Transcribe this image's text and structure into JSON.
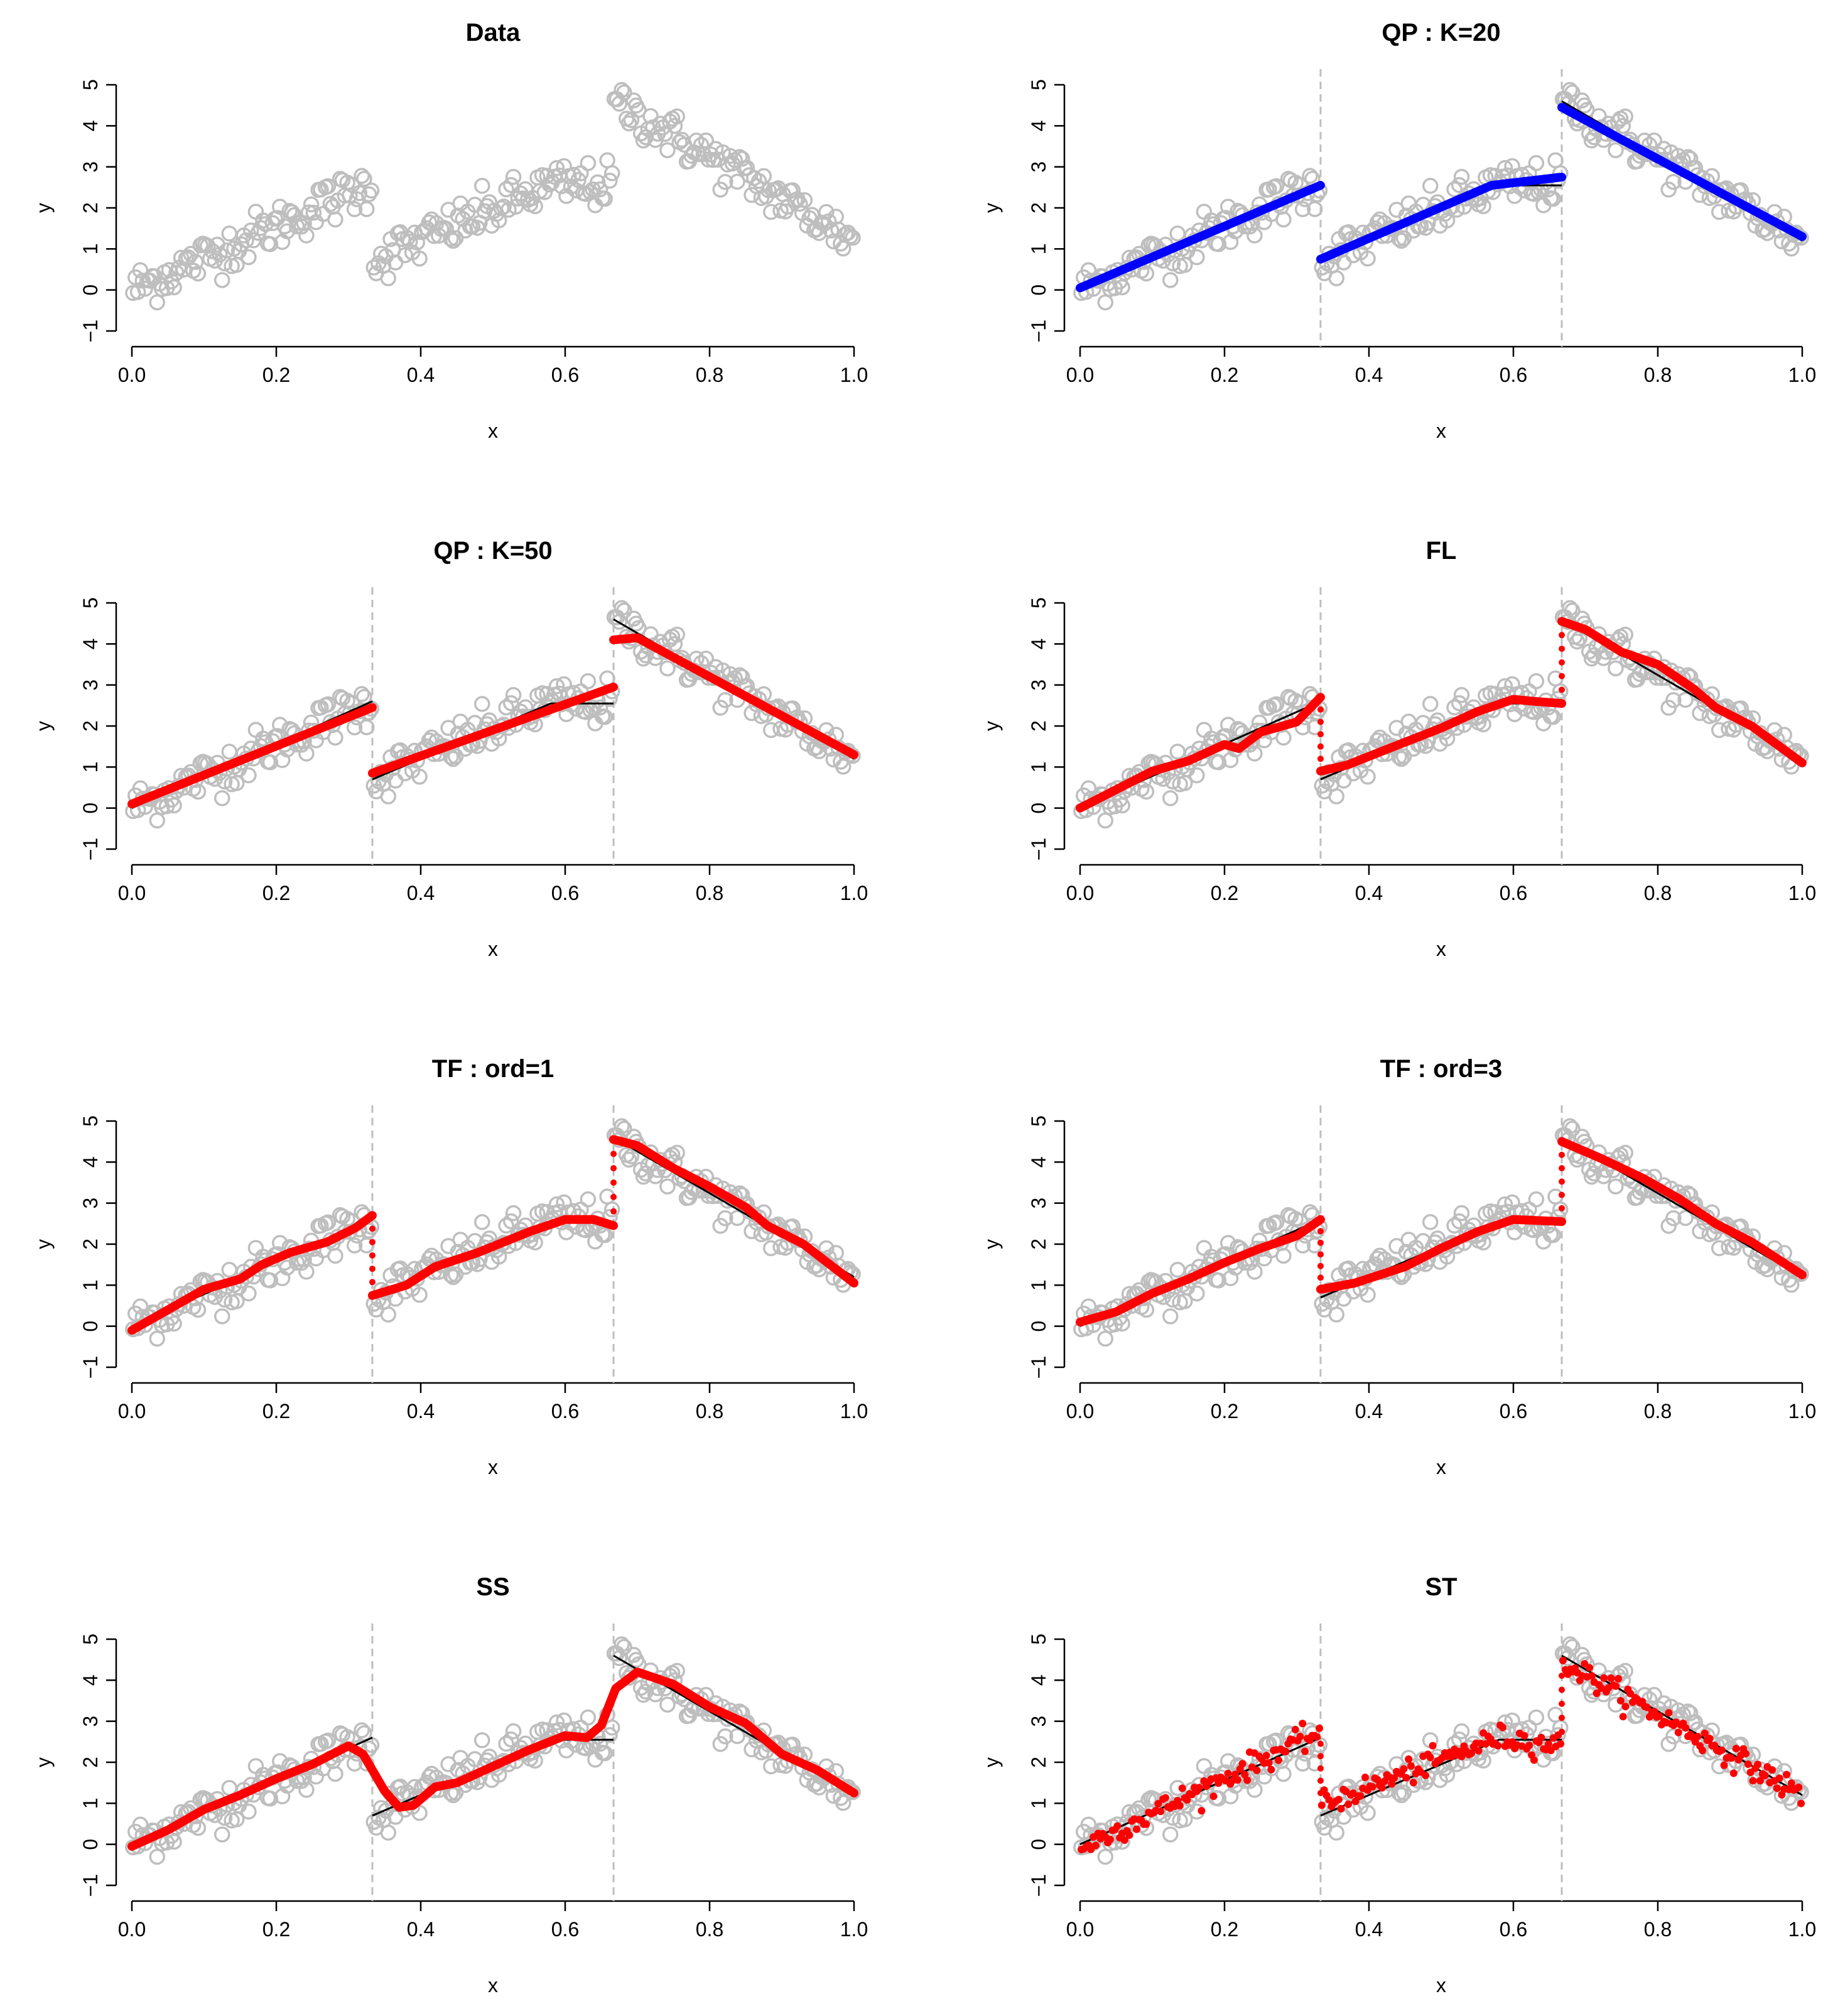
{
  "figure": {
    "colors": {
      "data_points": "#bebebe",
      "truth": "#000000",
      "changepoint_line": "#bebebe",
      "fit_blue": "#0000ff",
      "fit_red": "#ff0000"
    }
  },
  "chart_data": [
    {
      "type": "scatter",
      "title": "Data",
      "xlabel": "x",
      "ylabel": "y",
      "xlim": [
        0,
        1
      ],
      "ylim": [
        -1,
        5
      ],
      "xticks": [
        "0.0",
        "0.2",
        "0.4",
        "0.6",
        "0.8",
        "1.0"
      ],
      "yticks": [
        "−1",
        "0",
        "1",
        "2",
        "3",
        "4",
        "5"
      ],
      "truth": {
        "segments": [
          [
            [
              0,
              0
            ],
            [
              0.333,
              2.6
            ]
          ],
          [
            [
              0.333,
              0.7
            ],
            [
              0.58,
              2.55
            ],
            [
              0.667,
              2.55
            ]
          ],
          [
            [
              0.667,
              4.6
            ],
            [
              1.0,
              1.2
            ]
          ]
        ]
      },
      "changepoints": [],
      "fit": null
    },
    {
      "type": "scatter",
      "title": "QP : K=20",
      "xlabel": "x",
      "ylabel": "y",
      "xlim": [
        0,
        1
      ],
      "ylim": [
        -1,
        5
      ],
      "xticks": [
        "0.0",
        "0.2",
        "0.4",
        "0.6",
        "0.8",
        "1.0"
      ],
      "yticks": [
        "−1",
        "0",
        "1",
        "2",
        "3",
        "4",
        "5"
      ],
      "truth": {
        "segments": [
          [
            [
              0,
              0
            ],
            [
              0.333,
              2.6
            ]
          ],
          [
            [
              0.333,
              0.7
            ],
            [
              0.58,
              2.55
            ],
            [
              0.667,
              2.55
            ]
          ],
          [
            [
              0.667,
              4.6
            ],
            [
              1.0,
              1.2
            ]
          ]
        ]
      },
      "changepoints": [
        0.333,
        0.667
      ],
      "fit": {
        "style": "line",
        "color": "#0000ff",
        "segments": [
          [
            [
              0,
              0.05
            ],
            [
              0.333,
              2.55
            ]
          ],
          [
            [
              0.333,
              0.75
            ],
            [
              0.57,
              2.55
            ],
            [
              0.667,
              2.75
            ]
          ],
          [
            [
              0.667,
              4.45
            ],
            [
              1.0,
              1.3
            ]
          ]
        ]
      }
    },
    {
      "type": "scatter",
      "title": "QP : K=50",
      "xlabel": "x",
      "ylabel": "y",
      "xlim": [
        0,
        1
      ],
      "ylim": [
        -1,
        5
      ],
      "xticks": [
        "0.0",
        "0.2",
        "0.4",
        "0.6",
        "0.8",
        "1.0"
      ],
      "yticks": [
        "−1",
        "0",
        "1",
        "2",
        "3",
        "4",
        "5"
      ],
      "truth": {
        "segments": [
          [
            [
              0,
              0
            ],
            [
              0.333,
              2.6
            ]
          ],
          [
            [
              0.333,
              0.7
            ],
            [
              0.58,
              2.55
            ],
            [
              0.667,
              2.55
            ]
          ],
          [
            [
              0.667,
              4.6
            ],
            [
              1.0,
              1.2
            ]
          ]
        ]
      },
      "changepoints": [
        0.333,
        0.667
      ],
      "fit": {
        "style": "line",
        "color": "#ff0000",
        "segments": [
          [
            [
              0,
              0.1
            ],
            [
              0.333,
              2.45
            ]
          ],
          [
            [
              0.333,
              0.85
            ],
            [
              0.667,
              2.95
            ]
          ],
          [
            [
              0.667,
              4.1
            ],
            [
              0.7,
              4.15
            ],
            [
              1.0,
              1.3
            ]
          ]
        ]
      }
    },
    {
      "type": "scatter",
      "title": "FL",
      "xlabel": "x",
      "ylabel": "y",
      "xlim": [
        0,
        1
      ],
      "ylim": [
        -1,
        5
      ],
      "xticks": [
        "0.0",
        "0.2",
        "0.4",
        "0.6",
        "0.8",
        "1.0"
      ],
      "yticks": [
        "−1",
        "0",
        "1",
        "2",
        "3",
        "4",
        "5"
      ],
      "truth": {
        "segments": [
          [
            [
              0,
              0
            ],
            [
              0.333,
              2.6
            ]
          ],
          [
            [
              0.333,
              0.7
            ],
            [
              0.58,
              2.55
            ],
            [
              0.667,
              2.55
            ]
          ],
          [
            [
              0.667,
              4.6
            ],
            [
              1.0,
              1.2
            ]
          ]
        ]
      },
      "changepoints": [
        0.333,
        0.667
      ],
      "fit": {
        "style": "step",
        "color": "#ff0000",
        "segments": [
          [
            [
              0,
              0.0
            ],
            [
              0.05,
              0.45
            ],
            [
              0.1,
              0.9
            ],
            [
              0.15,
              1.15
            ],
            [
              0.2,
              1.55
            ],
            [
              0.22,
              1.45
            ],
            [
              0.25,
              1.85
            ],
            [
              0.3,
              2.1
            ],
            [
              0.333,
              2.7
            ]
          ],
          [
            [
              0.333,
              0.9
            ],
            [
              0.37,
              1.05
            ],
            [
              0.42,
              1.4
            ],
            [
              0.5,
              1.95
            ],
            [
              0.55,
              2.35
            ],
            [
              0.6,
              2.65
            ],
            [
              0.63,
              2.6
            ],
            [
              0.667,
              2.55
            ]
          ],
          [
            [
              0.667,
              4.55
            ],
            [
              0.7,
              4.35
            ],
            [
              0.75,
              3.8
            ],
            [
              0.8,
              3.5
            ],
            [
              0.85,
              2.9
            ],
            [
              0.88,
              2.45
            ],
            [
              0.93,
              2.0
            ],
            [
              1.0,
              1.1
            ]
          ]
        ]
      }
    },
    {
      "type": "scatter",
      "title": "TF : ord=1",
      "xlabel": "x",
      "ylabel": "y",
      "xlim": [
        0,
        1
      ],
      "ylim": [
        -1,
        5
      ],
      "xticks": [
        "0.0",
        "0.2",
        "0.4",
        "0.6",
        "0.8",
        "1.0"
      ],
      "yticks": [
        "−1",
        "0",
        "1",
        "2",
        "3",
        "4",
        "5"
      ],
      "truth": {
        "segments": [
          [
            [
              0,
              0
            ],
            [
              0.333,
              2.6
            ]
          ],
          [
            [
              0.333,
              0.7
            ],
            [
              0.58,
              2.55
            ],
            [
              0.667,
              2.55
            ]
          ],
          [
            [
              0.667,
              4.6
            ],
            [
              1.0,
              1.2
            ]
          ]
        ]
      },
      "changepoints": [
        0.333,
        0.667
      ],
      "fit": {
        "style": "wiggly",
        "color": "#ff0000",
        "segments": [
          [
            [
              0,
              -0.1
            ],
            [
              0.05,
              0.4
            ],
            [
              0.1,
              0.9
            ],
            [
              0.15,
              1.15
            ],
            [
              0.18,
              1.5
            ],
            [
              0.22,
              1.8
            ],
            [
              0.27,
              2.05
            ],
            [
              0.31,
              2.4
            ],
            [
              0.333,
              2.7
            ]
          ],
          [
            [
              0.333,
              0.75
            ],
            [
              0.38,
              1.0
            ],
            [
              0.42,
              1.45
            ],
            [
              0.48,
              1.8
            ],
            [
              0.55,
              2.3
            ],
            [
              0.6,
              2.6
            ],
            [
              0.64,
              2.6
            ],
            [
              0.667,
              2.45
            ]
          ],
          [
            [
              0.667,
              4.55
            ],
            [
              0.7,
              4.4
            ],
            [
              0.75,
              3.85
            ],
            [
              0.8,
              3.4
            ],
            [
              0.85,
              2.9
            ],
            [
              0.88,
              2.45
            ],
            [
              0.93,
              2.0
            ],
            [
              1.0,
              1.05
            ]
          ]
        ]
      }
    },
    {
      "type": "scatter",
      "title": "TF : ord=3",
      "xlabel": "x",
      "ylabel": "y",
      "xlim": [
        0,
        1
      ],
      "ylim": [
        -1,
        5
      ],
      "xticks": [
        "0.0",
        "0.2",
        "0.4",
        "0.6",
        "0.8",
        "1.0"
      ],
      "yticks": [
        "−1",
        "0",
        "1",
        "2",
        "3",
        "4",
        "5"
      ],
      "truth": {
        "segments": [
          [
            [
              0,
              0
            ],
            [
              0.333,
              2.6
            ]
          ],
          [
            [
              0.333,
              0.7
            ],
            [
              0.58,
              2.55
            ],
            [
              0.667,
              2.55
            ]
          ],
          [
            [
              0.667,
              4.6
            ],
            [
              1.0,
              1.2
            ]
          ]
        ]
      },
      "changepoints": [
        0.333,
        0.667
      ],
      "fit": {
        "style": "step",
        "color": "#ff0000",
        "segments": [
          [
            [
              0,
              0.1
            ],
            [
              0.05,
              0.35
            ],
            [
              0.1,
              0.8
            ],
            [
              0.15,
              1.15
            ],
            [
              0.2,
              1.55
            ],
            [
              0.25,
              1.9
            ],
            [
              0.3,
              2.2
            ],
            [
              0.333,
              2.6
            ]
          ],
          [
            [
              0.333,
              0.9
            ],
            [
              0.38,
              1.05
            ],
            [
              0.45,
              1.45
            ],
            [
              0.5,
              1.9
            ],
            [
              0.55,
              2.3
            ],
            [
              0.6,
              2.6
            ],
            [
              0.667,
              2.55
            ]
          ],
          [
            [
              0.667,
              4.5
            ],
            [
              0.72,
              4.1
            ],
            [
              0.78,
              3.6
            ],
            [
              0.83,
              3.1
            ],
            [
              0.88,
              2.5
            ],
            [
              0.93,
              2.05
            ],
            [
              1.0,
              1.25
            ]
          ]
        ]
      }
    },
    {
      "type": "scatter",
      "title": "SS",
      "xlabel": "x",
      "ylabel": "y",
      "xlim": [
        0,
        1
      ],
      "ylim": [
        -1,
        5
      ],
      "xticks": [
        "0.0",
        "0.2",
        "0.4",
        "0.6",
        "0.8",
        "1.0"
      ],
      "yticks": [
        "−1",
        "0",
        "1",
        "2",
        "3",
        "4",
        "5"
      ],
      "truth": {
        "segments": [
          [
            [
              0,
              0
            ],
            [
              0.333,
              2.6
            ]
          ],
          [
            [
              0.333,
              0.7
            ],
            [
              0.58,
              2.55
            ],
            [
              0.667,
              2.55
            ]
          ],
          [
            [
              0.667,
              4.6
            ],
            [
              1.0,
              1.2
            ]
          ]
        ]
      },
      "changepoints": [
        0.333,
        0.667
      ],
      "fit": {
        "style": "line",
        "color": "#ff0000",
        "segments": [
          [
            [
              0,
              -0.05
            ],
            [
              0.05,
              0.35
            ],
            [
              0.1,
              0.85
            ],
            [
              0.15,
              1.2
            ],
            [
              0.2,
              1.6
            ],
            [
              0.25,
              1.95
            ],
            [
              0.3,
              2.4
            ],
            [
              0.32,
              2.2
            ],
            [
              0.35,
              1.3
            ],
            [
              0.37,
              0.9
            ],
            [
              0.39,
              0.95
            ],
            [
              0.42,
              1.4
            ],
            [
              0.45,
              1.5
            ],
            [
              0.5,
              1.9
            ],
            [
              0.55,
              2.3
            ],
            [
              0.6,
              2.65
            ],
            [
              0.63,
              2.6
            ],
            [
              0.65,
              2.9
            ],
            [
              0.67,
              3.8
            ],
            [
              0.7,
              4.2
            ],
            [
              0.75,
              3.9
            ],
            [
              0.8,
              3.35
            ],
            [
              0.85,
              2.95
            ],
            [
              0.9,
              2.2
            ],
            [
              0.95,
              1.8
            ],
            [
              1.0,
              1.25
            ]
          ]
        ]
      }
    },
    {
      "type": "scatter",
      "title": "ST",
      "xlabel": "x",
      "ylabel": "y",
      "xlim": [
        0,
        1
      ],
      "ylim": [
        -1,
        5
      ],
      "xticks": [
        "0.0",
        "0.2",
        "0.4",
        "0.6",
        "0.8",
        "1.0"
      ],
      "yticks": [
        "−1",
        "0",
        "1",
        "2",
        "3",
        "4",
        "5"
      ],
      "truth": {
        "segments": [
          [
            [
              0,
              0
            ],
            [
              0.333,
              2.6
            ]
          ],
          [
            [
              0.333,
              0.7
            ],
            [
              0.58,
              2.55
            ],
            [
              0.667,
              2.55
            ]
          ],
          [
            [
              0.667,
              4.6
            ],
            [
              1.0,
              1.2
            ]
          ]
        ]
      },
      "changepoints": [
        0.333,
        0.667
      ],
      "fit": {
        "style": "noisy",
        "color": "#ff0000",
        "segments": [
          [
            [
              0,
              -0.1
            ],
            [
              0.333,
              2.75
            ]
          ],
          [
            [
              0.333,
              0.95
            ],
            [
              0.58,
              2.6
            ],
            [
              0.667,
              2.4
            ]
          ],
          [
            [
              0.667,
              4.45
            ],
            [
              1.0,
              1.2
            ]
          ]
        ]
      }
    }
  ]
}
